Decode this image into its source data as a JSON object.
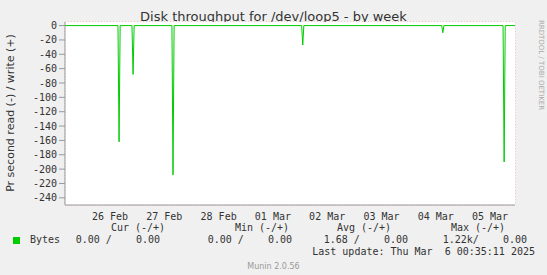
{
  "chart_data": {
    "type": "line",
    "title": "Disk throughput for /dev/loop5 - by week",
    "y_label": "Pr second read (-) / write (+)",
    "x": [
      -0.33,
      0.646,
      0.666,
      0.686,
      0.904,
      0.924,
      0.944,
      1.64,
      1.66,
      1.68,
      4.03,
      4.05,
      4.07,
      6.61,
      6.63,
      6.65,
      7.74,
      7.76,
      7.78,
      7.96
    ],
    "series": [
      {
        "name": "Bytes",
        "color": "#00cc00",
        "values": [
          0,
          0,
          -162,
          0,
          0,
          -68,
          0,
          0,
          -208,
          0,
          0,
          -27,
          0,
          0,
          -10,
          0,
          0,
          -190,
          0,
          0
        ]
      }
    ],
    "xlim": [
      -0.33,
      7.96
    ],
    "xticks": [
      {
        "value": 0.5,
        "label": "26 Feb"
      },
      {
        "value": 1.5,
        "label": "27 Feb"
      },
      {
        "value": 2.5,
        "label": "28 Feb"
      },
      {
        "value": 3.5,
        "label": "01 Mar"
      },
      {
        "value": 4.5,
        "label": "02 Mar"
      },
      {
        "value": 5.5,
        "label": "03 Mar"
      },
      {
        "value": 6.5,
        "label": "04 Mar"
      },
      {
        "value": 7.5,
        "label": "05 Mar"
      }
    ],
    "ylim": [
      -250,
      5
    ],
    "yticks": [
      0,
      -20,
      -40,
      -60,
      -80,
      -100,
      -120,
      -140,
      -160,
      -180,
      -200,
      -220,
      -240
    ],
    "grid": true,
    "legend_table": {
      "columns": [
        "Cur (-/+)",
        "Min (-/+)",
        "Avg (-/+)",
        "Max (-/+)"
      ],
      "rows": [
        {
          "name": "Bytes",
          "cells": [
            "0.00 /    0.00",
            "0.00 /    0.00",
            "1.68 /    0.00",
            "1.22k/    0.00"
          ]
        }
      ]
    },
    "annotations": [
      "Last update: Thu Mar  6 00:35:11 2025",
      "Munin 2.0.56",
      "RRDTOOL / TOBI OETIKER"
    ]
  }
}
